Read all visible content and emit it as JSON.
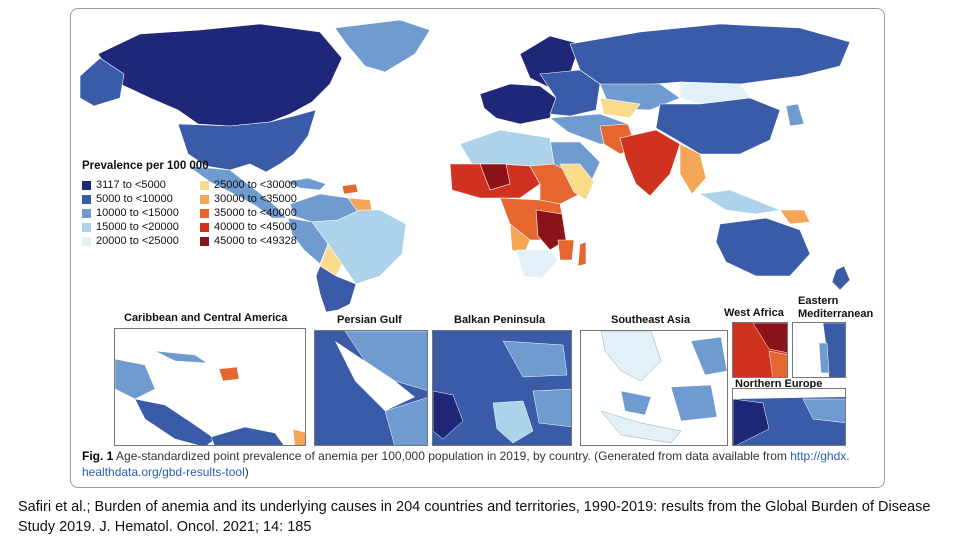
{
  "legend": {
    "title": "Prevalence per 100 000",
    "items": [
      {
        "label": "3117  to  <5000",
        "color": "#1f2878"
      },
      {
        "label": "5000  to  <10000",
        "color": "#3a5ba8"
      },
      {
        "label": "10000  to  <15000",
        "color": "#6f9bd0"
      },
      {
        "label": "15000  to  <20000",
        "color": "#acd3ea"
      },
      {
        "label": "20000  to  <25000",
        "color": "#e2f0f7"
      },
      {
        "label": "25000  to  <30000",
        "color": "#f8dc8c"
      },
      {
        "label": "30000  to  <35000",
        "color": "#f4a555"
      },
      {
        "label": "35000  to  <40000",
        "color": "#e6662f"
      },
      {
        "label": "40000  to  <45000",
        "color": "#cf3320"
      },
      {
        "label": "45000  to  <49328",
        "color": "#8b1218"
      }
    ]
  },
  "insets": {
    "caribbean": "Caribbean and Central America",
    "persian_gulf": "Persian Gulf",
    "balkan": "Balkan Peninsula",
    "southeast_asia": "Southeast Asia",
    "west_africa": "West Africa",
    "eastern_med": "Eastern Mediterranean",
    "northern_europe": "Northern Europe"
  },
  "caption": {
    "fig_label": "Fig. 1",
    "text": " Age-standardized point prevalence of anemia per 100,000 population in 2019, by country. (Generated from data available from ",
    "link1": "http://ghdx.",
    "link2": "healthdata.org/gbd-results-tool",
    "close": ")"
  },
  "citation": "Safiri et al.; Burden of anemia and its underlying causes in 204 countries and territories, 1990-2019: results from the Global Burden of Disease Study 2019. J. Hematol. Oncol. 2021; 14: 185"
}
